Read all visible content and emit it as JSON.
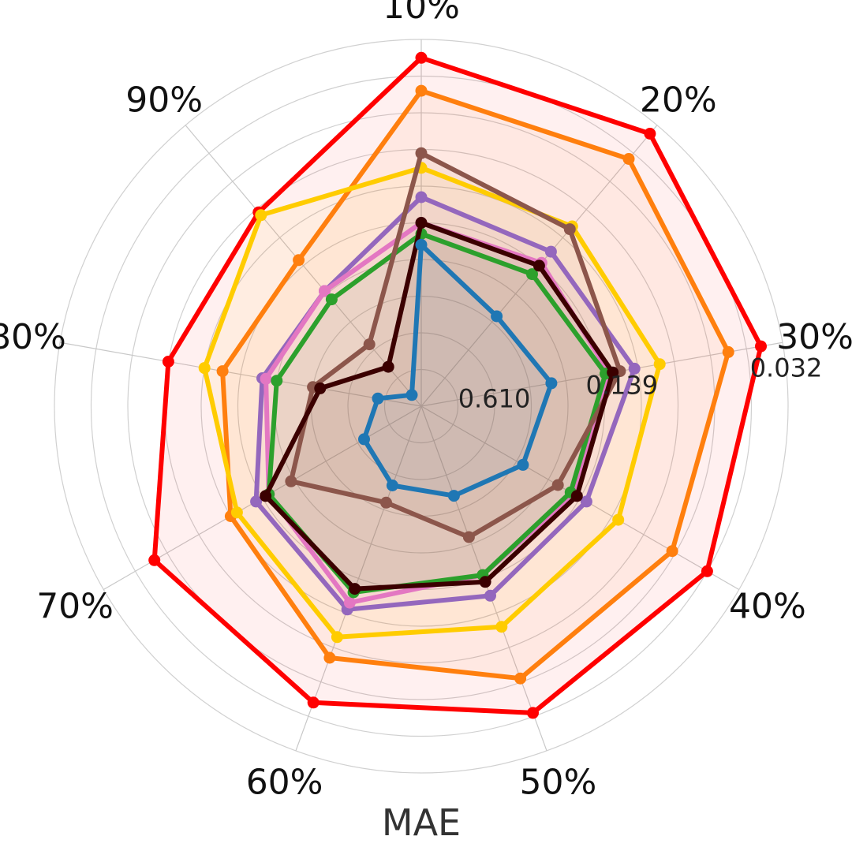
{
  "chart_data": {
    "type": "radar",
    "title": "",
    "xlabel": "MAE",
    "categories": [
      "10%",
      "20%",
      "30%",
      "40%",
      "50%",
      "60%",
      "70%",
      "80%",
      "90%"
    ],
    "ring_tick_labels": [
      "0.610",
      "0.139",
      "0.032"
    ],
    "ring_tick_values": [
      0.2,
      0.55,
      1.0
    ],
    "grid": true,
    "legend": "none",
    "series": [
      {
        "color": "#ff0000",
        "values": [
          0.95,
          0.97,
          0.94,
          0.9,
          0.89,
          0.86,
          0.84,
          0.7,
          0.69
        ]
      },
      {
        "color": "#ff7f0e",
        "values": [
          0.86,
          0.88,
          0.85,
          0.79,
          0.79,
          0.73,
          0.6,
          0.55,
          0.52
        ]
      },
      {
        "color": "#ffcc00",
        "values": [
          0.65,
          0.64,
          0.66,
          0.62,
          0.64,
          0.67,
          0.58,
          0.6,
          0.68
        ]
      },
      {
        "color": "#9467bd",
        "values": [
          0.57,
          0.55,
          0.59,
          0.52,
          0.55,
          0.59,
          0.52,
          0.44,
          0.41
        ]
      },
      {
        "color": "#e377c2",
        "values": [
          0.5,
          0.51,
          0.52,
          0.48,
          0.49,
          0.57,
          0.48,
          0.43,
          0.41
        ]
      },
      {
        "color": "#2ca02c",
        "values": [
          0.47,
          0.47,
          0.51,
          0.47,
          0.49,
          0.54,
          0.48,
          0.4,
          0.38
        ]
      },
      {
        "color": "#8c564b",
        "values": [
          0.69,
          0.63,
          0.55,
          0.43,
          0.38,
          0.28,
          0.41,
          0.3,
          0.22
        ]
      },
      {
        "color": "#3b0000",
        "values": [
          0.5,
          0.5,
          0.53,
          0.49,
          0.51,
          0.53,
          0.49,
          0.28,
          0.14
        ]
      },
      {
        "color": "#1f77b4",
        "values": [
          0.44,
          0.32,
          0.36,
          0.32,
          0.26,
          0.23,
          0.18,
          0.12,
          0.04
        ]
      }
    ]
  }
}
